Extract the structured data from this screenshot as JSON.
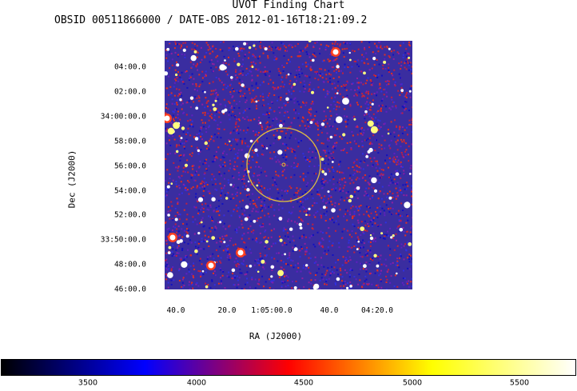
{
  "chart_data": {
    "type": "heatmap",
    "title": "UVOT Finding Chart",
    "subtitle": "OBSID 00511866000 / DATE-OBS 2012-01-16T18:21:09.2",
    "xlabel": "RA (J2000)",
    "ylabel": "Dec (J2000)",
    "x_ticks": [
      "40.0",
      "20.0",
      "1:05:00.0",
      "40.0",
      "04:20.0"
    ],
    "y_ticks": [
      "04:00.0",
      "02:00.0",
      "34:00:00.0",
      "58:00.0",
      "56:00.0",
      "54:00.0",
      "52:00.0",
      "33:50:00.0",
      "48:00.0",
      "46:00.0"
    ],
    "colorbar": {
      "ticks": [
        "3500",
        "4000",
        "4500",
        "5000",
        "5500"
      ],
      "colormap": [
        "#000000",
        "#0000ff",
        "#ff0000",
        "#ffff00",
        "#ffffff"
      ]
    },
    "overlay": {
      "shape": "circle",
      "color": "#e0c040"
    },
    "grid": false
  }
}
